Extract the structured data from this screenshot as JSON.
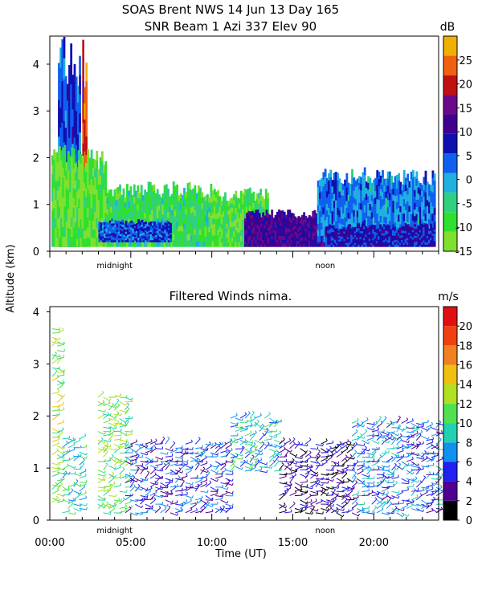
{
  "title_line1": "SOAS Brent NWS  14 Jun 13 Day 165",
  "title_line2": "SNR Beam 1 Azi 337 Elev 90",
  "shared_ylabel": "Altitude (km)",
  "colors": {
    "snr_scale": [
      "#80e030",
      "#30e030",
      "#30d080",
      "#20b0e0",
      "#1060f0",
      "#1010b0",
      "#400090",
      "#6a0a8a",
      "#c01010",
      "#f06010",
      "#f0b000"
    ],
    "wind_scale": [
      "#000000",
      "#500090",
      "#2020f0",
      "#1090f0",
      "#20d0b0",
      "#50e050",
      "#b0e020",
      "#f0c010",
      "#f08020",
      "#f04010",
      "#e01010"
    ]
  },
  "chart_data": [
    {
      "type": "heatmap",
      "title": "SNR Beam 1 Azi 337 Elev 90",
      "ylabel": "Altitude (km)",
      "ylim": [
        0,
        4.6
      ],
      "yticks": [
        0,
        1,
        2,
        3,
        4
      ],
      "xlim_hours": [
        0,
        24
      ],
      "x_annotations": [
        "midnight",
        "noon"
      ],
      "colorbar": {
        "unit": "dB",
        "range": [
          -15,
          30
        ],
        "ticks": [
          -15,
          -10,
          -5,
          0,
          5,
          10,
          15,
          20,
          25
        ]
      },
      "regions": [
        {
          "x_range_hours": [
            0.5,
            1.9
          ],
          "alt_range_km": [
            0.1,
            4.6
          ],
          "snr_db": 5
        },
        {
          "x_range_hours": [
            2.0,
            2.3
          ],
          "alt_range_km": [
            0.1,
            4.6
          ],
          "snr_db": 22
        },
        {
          "x_range_hours": [
            0.1,
            3.5
          ],
          "alt_range_km": [
            0.1,
            2.3
          ],
          "snr_db": -10
        },
        {
          "x_range_hours": [
            3.5,
            10.0
          ],
          "alt_range_km": [
            0.1,
            1.5
          ],
          "snr_db": -7
        },
        {
          "x_range_hours": [
            3.0,
            7.5
          ],
          "alt_range_km": [
            0.2,
            0.7
          ],
          "snr_db": 5
        },
        {
          "x_range_hours": [
            10.0,
            13.5
          ],
          "alt_range_km": [
            0.1,
            1.4
          ],
          "snr_db": -9
        },
        {
          "x_range_hours": [
            12.0,
            17.5
          ],
          "alt_range_km": [
            0.1,
            0.9
          ],
          "snr_db": 12
        },
        {
          "x_range_hours": [
            16.5,
            23.8
          ],
          "alt_range_km": [
            0.2,
            1.8
          ],
          "snr_db": 2
        },
        {
          "x_range_hours": [
            17.0,
            23.8
          ],
          "alt_range_km": [
            0.1,
            0.6
          ],
          "snr_db": 8
        }
      ]
    },
    {
      "type": "scatter",
      "title": "Filtered Winds nima.",
      "xlabel": "Time (UT)",
      "ylabel": "Altitude (km)",
      "ylim": [
        0,
        4.1
      ],
      "yticks": [
        0,
        1,
        2,
        3,
        4
      ],
      "xlim_hours": [
        0,
        24
      ],
      "xtick_labels": [
        "00:00",
        "05:00",
        "10:00",
        "15:00",
        "20:00"
      ],
      "x_annotations": [
        "midnight",
        "noon"
      ],
      "colorbar": {
        "unit": "m/s",
        "range": [
          0,
          22
        ],
        "ticks": [
          0,
          2,
          4,
          6,
          8,
          10,
          12,
          14,
          16,
          18,
          20
        ]
      },
      "wind_groups": [
        {
          "x_range_hours": [
            0.0,
            0.6
          ],
          "alt_range_km": [
            0.3,
            3.8
          ],
          "speed_ms": 12
        },
        {
          "x_range_hours": [
            0.6,
            2.0
          ],
          "alt_range_km": [
            0.1,
            1.6
          ],
          "speed_ms": 9
        },
        {
          "x_range_hours": [
            2.8,
            4.8
          ],
          "alt_range_km": [
            0.1,
            2.4
          ],
          "speed_ms": 11
        },
        {
          "x_range_hours": [
            4.5,
            11.0
          ],
          "alt_range_km": [
            0.1,
            1.5
          ],
          "speed_ms": 5
        },
        {
          "x_range_hours": [
            11.0,
            14.0
          ],
          "alt_range_km": [
            0.9,
            2.0
          ],
          "speed_ms": 8
        },
        {
          "x_range_hours": [
            14.0,
            18.5
          ],
          "alt_range_km": [
            0.1,
            1.5
          ],
          "speed_ms": 3
        },
        {
          "x_range_hours": [
            18.5,
            24.0
          ],
          "alt_range_km": [
            0.1,
            1.9
          ],
          "speed_ms": 6
        }
      ]
    }
  ]
}
